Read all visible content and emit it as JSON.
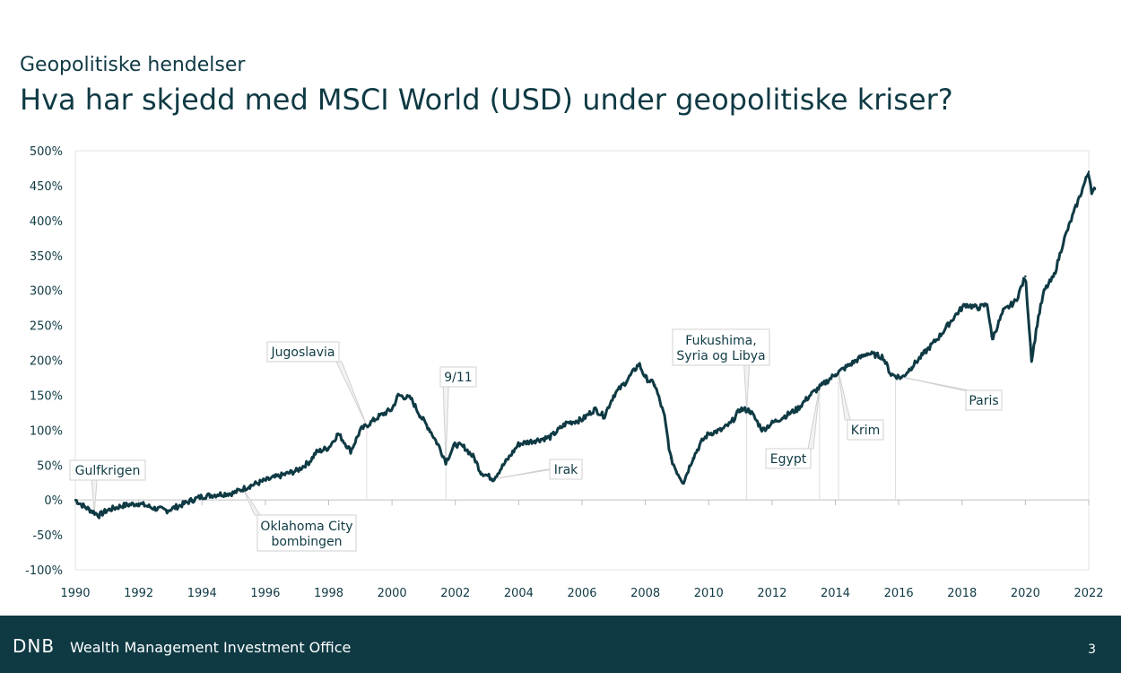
{
  "header": {
    "subtitle": "Geopolitiske hendelser",
    "title": "Hva har skjedd med MSCI World (USD) under geopolitiske kriser?"
  },
  "footer": {
    "logo": "DNB",
    "text": "Wealth Management Investment Office",
    "page": "3"
  },
  "colors": {
    "brand": "#0f3a44",
    "line": "#0f3a44",
    "grid": "#e3e3e3",
    "callout": "#d0d0d0"
  },
  "chart_data": {
    "type": "line",
    "title": "",
    "xlabel": "",
    "ylabel": "",
    "xlim": [
      1990,
      2022
    ],
    "ylim": [
      -100,
      500
    ],
    "yticks": [
      "500%",
      "450%",
      "400%",
      "350%",
      "300%",
      "250%",
      "200%",
      "150%",
      "100%",
      "50%",
      "0%",
      "-50%",
      "-100%"
    ],
    "xticks": [
      "1990",
      "1992",
      "1994",
      "1996",
      "1998",
      "2000",
      "2002",
      "2004",
      "2006",
      "2008",
      "2010",
      "2012",
      "2014",
      "2016",
      "2018",
      "2020",
      "2022"
    ],
    "grid": false,
    "series": [
      {
        "x": [
          1990.0,
          1990.3,
          1990.6,
          1990.75,
          1991.0,
          1991.5,
          1992.0,
          1992.5,
          1992.9,
          1993.3,
          1993.7,
          1994.0,
          1994.5,
          1995.0,
          1995.5,
          1996.0,
          1996.5,
          1997.0,
          1997.4,
          1997.6,
          1998.0,
          1998.3,
          1998.7,
          1999.0,
          1999.3,
          1999.6,
          2000.0,
          2000.2,
          2000.6,
          2000.9,
          2001.2,
          2001.5,
          2001.7,
          2002.0,
          2002.3,
          2002.6,
          2002.8,
          2003.2,
          2003.6,
          2004.0,
          2004.5,
          2005.0,
          2005.5,
          2006.0,
          2006.4,
          2006.7,
          2007.0,
          2007.4,
          2007.8,
          2008.0,
          2008.3,
          2008.6,
          2008.8,
          2009.0,
          2009.2,
          2009.5,
          2009.8,
          2010.0,
          2010.4,
          2010.7,
          2011.0,
          2011.3,
          2011.7,
          2012.0,
          2012.4,
          2012.8,
          2013.2,
          2013.6,
          2014.0,
          2014.5,
          2015.0,
          2015.5,
          2015.75,
          2016.1,
          2016.4,
          2016.8,
          2017.3,
          2017.8,
          2018.1,
          2018.5,
          2018.8,
          2018.95,
          2019.3,
          2019.7,
          2020.0,
          2020.2,
          2020.4,
          2020.6,
          2020.9,
          2021.2,
          2021.6,
          2021.8,
          2022.0,
          2022.1,
          2022.2
        ],
        "values": [
          0,
          -10,
          -18,
          -22,
          -15,
          -8,
          -5,
          -12,
          -15,
          -8,
          0,
          5,
          8,
          10,
          20,
          28,
          35,
          42,
          55,
          68,
          75,
          95,
          70,
          100,
          110,
          120,
          130,
          150,
          145,
          120,
          100,
          75,
          55,
          80,
          75,
          60,
          40,
          30,
          55,
          80,
          85,
          90,
          110,
          115,
          130,
          120,
          150,
          170,
          195,
          175,
          165,
          120,
          60,
          40,
          25,
          60,
          85,
          95,
          100,
          110,
          130,
          128,
          100,
          110,
          120,
          130,
          150,
          165,
          180,
          195,
          210,
          205,
          180,
          175,
          190,
          210,
          235,
          265,
          280,
          275,
          280,
          230,
          270,
          285,
          320,
          200,
          260,
          300,
          320,
          370,
          420,
          445,
          470,
          440,
          445
        ]
      }
    ],
    "annotations": [
      {
        "label": "Gulfkrigen",
        "x": 1990.6
      },
      {
        "label": "Oklahoma City bombingen",
        "x": 1995.3
      },
      {
        "label": "Jugoslavia",
        "x": 1999.2
      },
      {
        "label": "9/11",
        "x": 2001.7
      },
      {
        "label": "Irak",
        "x": 2003.2
      },
      {
        "label": "Fukushima, Syria og Libya",
        "x": 2011.2
      },
      {
        "label": "Egypt",
        "x": 2013.5
      },
      {
        "label": "Krim",
        "x": 2014.1
      },
      {
        "label": "Paris",
        "x": 2015.9
      }
    ]
  }
}
